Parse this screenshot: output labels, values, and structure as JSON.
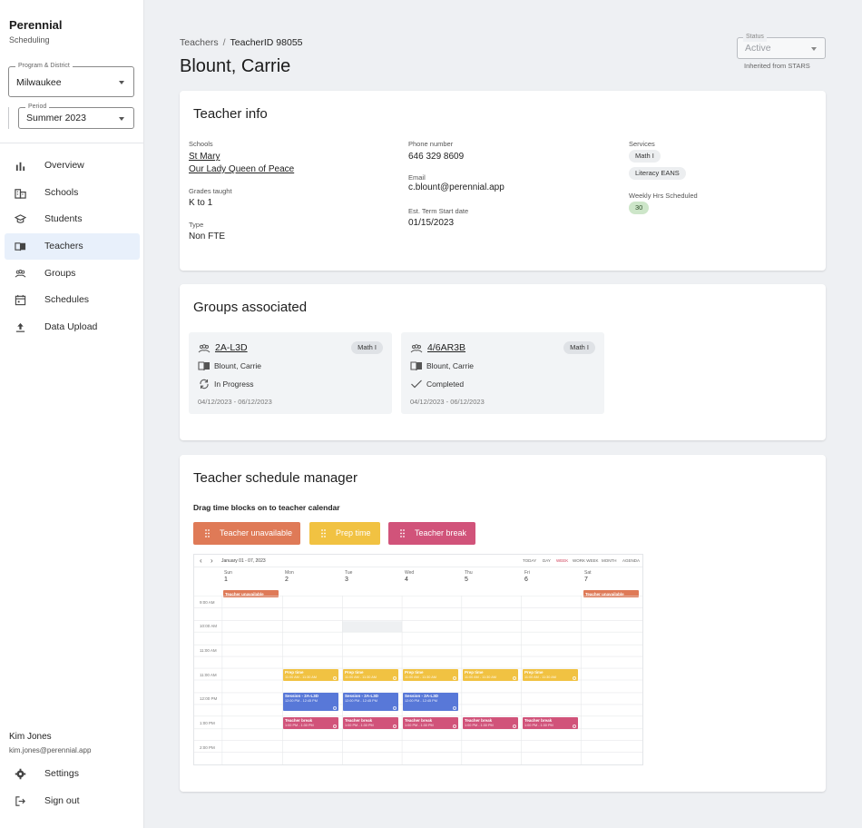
{
  "app": {
    "name": "Perennial",
    "subtitle": "Scheduling"
  },
  "sidebar": {
    "program_field": {
      "label": "Program & District",
      "value": "Milwaukee"
    },
    "period_field": {
      "label": "Period",
      "value": "Summer 2023"
    },
    "nav": [
      {
        "label": "Overview",
        "icon": "bar-chart-icon"
      },
      {
        "label": "Schools",
        "icon": "building-icon"
      },
      {
        "label": "Students",
        "icon": "graduation-cap-icon"
      },
      {
        "label": "Teachers",
        "icon": "book-icon",
        "active": true
      },
      {
        "label": "Groups",
        "icon": "people-icon"
      },
      {
        "label": "Schedules",
        "icon": "calendar-icon"
      },
      {
        "label": "Data Upload",
        "icon": "upload-icon"
      }
    ],
    "user": {
      "name": "Kim Jones",
      "email": "kim.jones@perennial.app"
    },
    "footer": [
      {
        "label": "Settings",
        "icon": "gear-icon"
      },
      {
        "label": "Sign out",
        "icon": "sign-out-icon"
      }
    ]
  },
  "breadcrumb": {
    "parent": "Teachers",
    "separator": "/",
    "current": "TeacherID 98055"
  },
  "page_title": "Blount, Carrie",
  "status": {
    "label": "Status",
    "value": "Active",
    "hint": "Inherited from STARS"
  },
  "teacher_info": {
    "title": "Teacher info",
    "schools_label": "Schools",
    "schools": [
      "St Mary",
      "Our Lady Queen of Peace"
    ],
    "grades_label": "Grades taught",
    "grades": "K to 1",
    "type_label": "Type",
    "type": "Non FTE",
    "phone_label": "Phone number",
    "phone": "646 329 8609",
    "email_label": "Email",
    "email": "c.blount@perennial.app",
    "start_label": "Est. Term Start date",
    "start": "01/15/2023",
    "services_label": "Services",
    "services": [
      "Math I",
      "Literacy EANS"
    ],
    "hours_label": "Weekly Hrs Scheduled",
    "hours": "30"
  },
  "groups": {
    "title": "Groups associated",
    "items": [
      {
        "name": "2A-L3D",
        "subject": "Math I",
        "teacher": "Blount, Carrie",
        "status": "In Progress",
        "dates": "04/12/2023 - 06/12/2023"
      },
      {
        "name": "4/6AR3B",
        "subject": "Math I",
        "teacher": "Blount, Carrie",
        "status": "Completed",
        "dates": "04/12/2023 - 06/12/2023"
      }
    ]
  },
  "schedule": {
    "title": "Teacher schedule manager",
    "subtitle": "Drag time blocks on to teacher calendar",
    "blocks": [
      {
        "label": "Teacher unavailable",
        "color": "#df7a57"
      },
      {
        "label": "Prep time",
        "color": "#f1c242"
      },
      {
        "label": "Teacher break",
        "color": "#d1537a"
      }
    ],
    "calendar": {
      "range": "January 01 - 07, 2023",
      "prev": "‹",
      "next": "›",
      "views": [
        "TODAY",
        "DAY",
        "WEEK",
        "WORK WEEK",
        "MONTH",
        "AGENDA"
      ],
      "active_view": "WEEK",
      "days": [
        {
          "name": "Sun",
          "num": "1"
        },
        {
          "name": "Mon",
          "num": "2"
        },
        {
          "name": "Tue",
          "num": "3"
        },
        {
          "name": "Wed",
          "num": "4"
        },
        {
          "name": "Thu",
          "num": "5"
        },
        {
          "name": "Fri",
          "num": "6"
        },
        {
          "name": "Sat",
          "num": "7"
        }
      ],
      "times": [
        "9:00 AM",
        "10:00 AM",
        "11:00 AM",
        "11:00 AM",
        "12:00 PM",
        "1:00 PM",
        "2:00 PM"
      ],
      "allday_label": "Teacher unavailable",
      "prep": {
        "title": "Prep time",
        "sub": "11:00 AM - 11:30 AM"
      },
      "session": {
        "title": "Session - 2A-L3D",
        "sub": "12:00 PM - 12:45 PM"
      },
      "break": {
        "title": "Teacher break",
        "sub": "1:00 PM - 1:30 PM"
      }
    }
  },
  "colors": {
    "accent": "#1a73e8",
    "unavailable": "#df7a57",
    "prep": "#f1c242",
    "session": "#5878d8",
    "break": "#d1537a"
  }
}
